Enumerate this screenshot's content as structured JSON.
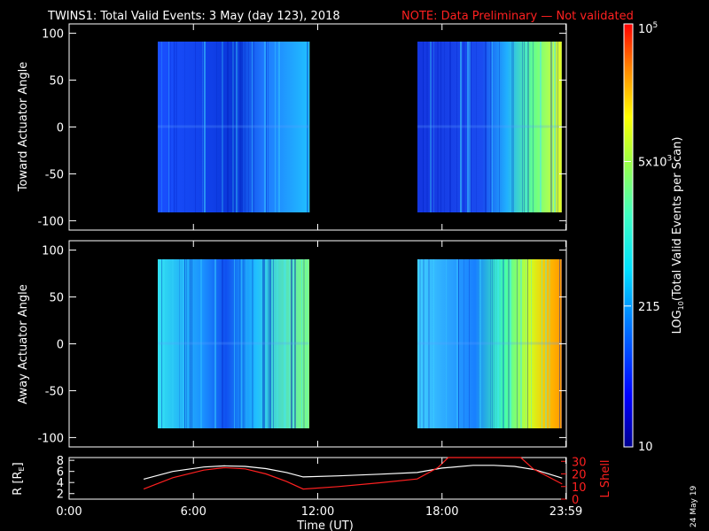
{
  "title": "TWINS1: Total Valid Events:  3 May (day 123), 2018",
  "note": "NOTE: Data Preliminary — Not validated",
  "stamp": "24 May 19",
  "colors": {
    "background": "#000000",
    "frame": "#ffffff",
    "note": "#ff2020",
    "orbit_l": "#ff2020",
    "orbit_r": "#ffffff"
  },
  "colorbar": {
    "label": "LOG10(Total Valid Events per Scan)",
    "label_main": "LOG",
    "label_sub": "10",
    "label_rest": "(Total Valid Events per Scan)",
    "ticks": [
      {
        "value": 10,
        "text": "10"
      },
      {
        "value": 215,
        "text": "215"
      },
      {
        "value": 5000,
        "text": "5x10",
        "sup": "3"
      },
      {
        "value": 100000,
        "text": "10",
        "sup": "5"
      }
    ],
    "range": [
      10,
      100000
    ],
    "scale": "log"
  },
  "chart_data": [
    {
      "type": "heatmap",
      "ylabel": "Toward Actuator Angle",
      "ylim": [
        -110,
        110
      ],
      "yticks": [
        -100,
        -50,
        0,
        50,
        100
      ],
      "xlim": [
        0,
        24
      ],
      "data_intervals_hours": [
        [
          4.0,
          11.5
        ],
        [
          16.8,
          23.8
        ]
      ],
      "angle_range": [
        -90,
        90
      ],
      "intensity_trend": "log-intensity ~ low (blue) through first interval rising to cyan; second interval low (blue) rising to yellow near 23:59"
    },
    {
      "type": "heatmap",
      "ylabel": "Away Actuator Angle",
      "ylim": [
        -110,
        110
      ],
      "yticks": [
        -100,
        -50,
        0,
        50,
        100
      ],
      "xlim": [
        0,
        24
      ],
      "data_intervals_hours": [
        [
          4.0,
          11.5
        ],
        [
          16.8,
          23.8
        ]
      ],
      "angle_range": [
        -90,
        90
      ],
      "intensity_trend": "cyan/blue through first interval rising to green; second interval cyan rising to orange near 23:59"
    },
    {
      "type": "line",
      "xlabel": "Time (UT)",
      "xlim": [
        0,
        24
      ],
      "xticks": [
        {
          "value": 0,
          "text": "0:00"
        },
        {
          "value": 6,
          "text": "6:00"
        },
        {
          "value": 12,
          "text": "12:00"
        },
        {
          "value": 18,
          "text": "18:00"
        },
        {
          "value": 23.98,
          "text": "23:59"
        }
      ],
      "y_left": {
        "label": "R [RE]",
        "label_main": "R [R",
        "label_sub": "E",
        "label_end": "]",
        "ticks": [
          2,
          4,
          6,
          8
        ],
        "ylim": [
          1,
          8.5
        ]
      },
      "y_right": {
        "label": "L Shell",
        "ticks": [
          0,
          10,
          20,
          30
        ],
        "ylim": [
          0,
          33
        ]
      },
      "series": [
        {
          "axis": "left",
          "color": "#ffffff",
          "x": [
            3.6,
            5.0,
            6.5,
            7.5,
            8.5,
            9.5,
            10.5,
            11.3,
            13.0,
            15.0,
            16.8,
            18.0,
            19.5,
            20.5,
            21.5,
            22.5,
            23.8
          ],
          "y": [
            4.6,
            6.0,
            6.8,
            7.0,
            6.9,
            6.5,
            5.8,
            5.0,
            5.2,
            5.5,
            5.8,
            6.6,
            7.1,
            7.1,
            6.9,
            6.3,
            4.8
          ]
        },
        {
          "axis": "right",
          "x": [
            3.6,
            5.0,
            6.5,
            7.5,
            8.5,
            9.5,
            10.5,
            11.3,
            13.0,
            15.0,
            16.8,
            17.8,
            18.3,
            21.8,
            22.4,
            23.8
          ],
          "y": [
            8.0,
            17.0,
            23.0,
            25.0,
            24.0,
            20.0,
            14.0,
            8.0,
            10.0,
            13.0,
            16.0,
            25.0,
            33.0,
            33.0,
            24.0,
            12.0
          ]
        }
      ]
    }
  ]
}
